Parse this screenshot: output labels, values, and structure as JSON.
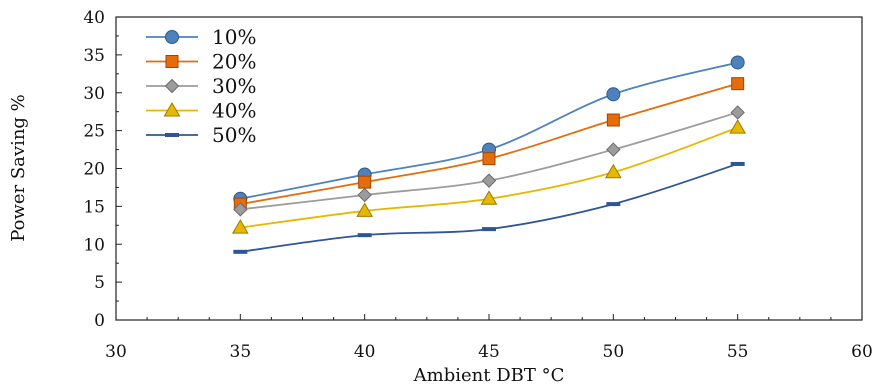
{
  "chart_data": {
    "type": "line",
    "xlabel": "Ambient DBT °C",
    "ylabel": "Power Saving %",
    "xlim": [
      30,
      60
    ],
    "ylim": [
      0,
      40
    ],
    "xticks": [
      30,
      35,
      40,
      45,
      50,
      55,
      60
    ],
    "yticks": [
      0,
      5,
      10,
      15,
      20,
      25,
      30,
      35,
      40
    ],
    "x": [
      35,
      40,
      45,
      50,
      55
    ],
    "grid": false,
    "legend_position": "top-left",
    "series": [
      {
        "name": "10%",
        "values": [
          16.0,
          19.2,
          22.5,
          29.8,
          34.0
        ],
        "color": "#4f81bd",
        "marker": "circle"
      },
      {
        "name": "20%",
        "values": [
          15.3,
          18.2,
          21.3,
          26.4,
          31.2
        ],
        "color": "#e46c0a",
        "marker": "square"
      },
      {
        "name": "30%",
        "values": [
          14.6,
          16.5,
          18.4,
          22.5,
          27.4
        ],
        "color": "#9c9c9c",
        "marker": "diamond"
      },
      {
        "name": "40%",
        "values": [
          12.2,
          14.4,
          16.0,
          19.5,
          25.4
        ],
        "color": "#e6b800",
        "marker": "triangle"
      },
      {
        "name": "50%",
        "values": [
          9.0,
          11.2,
          12.0,
          15.3,
          20.6
        ],
        "color": "#2f5597",
        "marker": "dash"
      }
    ]
  }
}
